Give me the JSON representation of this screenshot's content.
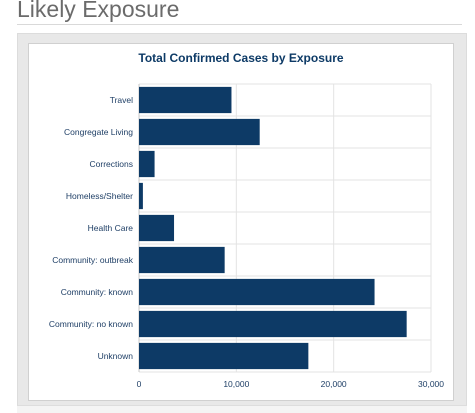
{
  "page": {
    "section_title": "Likely Exposure"
  },
  "colors": {
    "bar": "#0d3a66",
    "title_text": "#0d3a66",
    "label_text": "#1f3f66",
    "grid": "#e3e3e3",
    "axis": "#c8c8c8"
  },
  "chart_data": {
    "type": "bar",
    "orientation": "horizontal",
    "title": "Total Confirmed Cases by Exposure",
    "xlabel": "",
    "ylabel": "",
    "categories": [
      "Travel",
      "Congregate Living",
      "Corrections",
      "Homeless/Shelter",
      "Health Care",
      "Community: outbreak",
      "Community: known",
      "Community: no known",
      "Unknown"
    ],
    "values": [
      9500,
      12400,
      1600,
      400,
      3600,
      8800,
      24200,
      27500,
      17400
    ],
    "xlim": [
      0,
      30000
    ],
    "ticks": [
      0,
      10000,
      20000,
      30000
    ],
    "tick_labels": [
      "0",
      "10,000",
      "20,000",
      "30,000"
    ],
    "grid": true,
    "legend": "none"
  }
}
